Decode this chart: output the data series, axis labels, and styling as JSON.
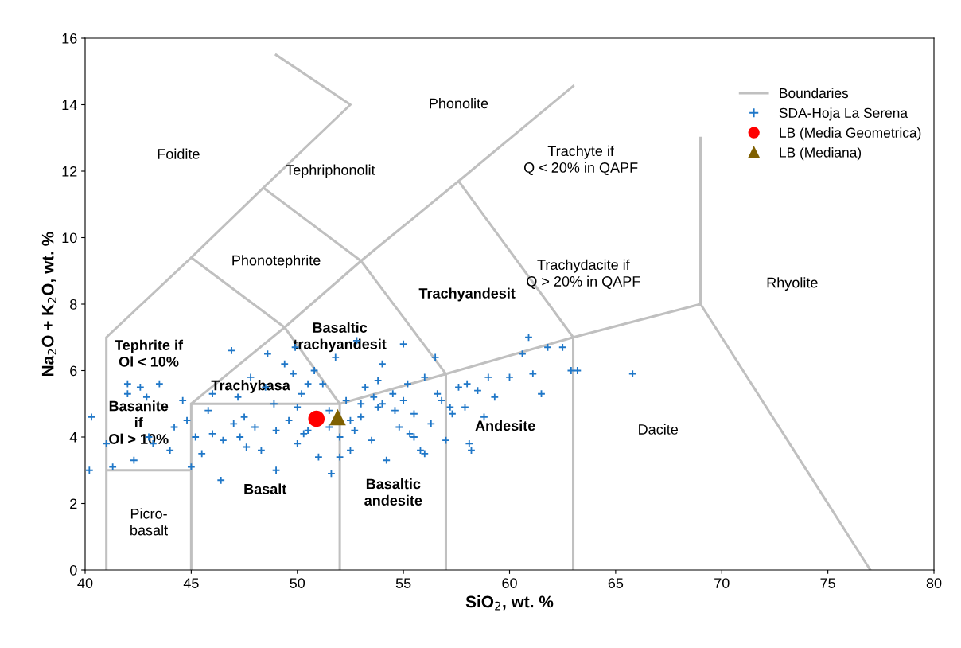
{
  "chart_data": {
    "type": "scatter",
    "xlabel": "SiO$_{2}$, wt. %",
    "ylabel": "Na$_{2}$O + K$_{2}$O, wt. %",
    "xlim": [
      40,
      80
    ],
    "xticks": [
      40,
      45,
      50,
      55,
      60,
      65,
      70,
      75,
      80
    ],
    "ylim": [
      0,
      16
    ],
    "yticks": [
      0,
      2,
      4,
      6,
      8,
      10,
      12,
      14,
      16
    ],
    "grid": false,
    "legend": "top right",
    "series": [
      {
        "name": "Boundaries",
        "type": "line",
        "color": "#c0c0c0",
        "marker": "none",
        "line_style": "solid",
        "x": [
          41,
          41,
          45,
          null,
          41,
          41,
          45,
          48.4,
          52.5,
          49,
          null,
          45,
          45,
          49.4,
          53,
          57.6,
          63,
          null,
          45,
          52,
          57,
          63,
          69,
          77,
          null,
          52,
          52,
          null,
          57,
          57,
          null,
          63,
          63,
          null,
          69,
          69,
          null,
          45,
          49.4,
          null,
          48.4,
          53,
          null,
          53,
          57,
          null,
          57.6,
          63,
          null,
          49.4,
          52
        ],
        "values": [
          0,
          3,
          3,
          null,
          3,
          7,
          9.4,
          11.5,
          14,
          15.5,
          null,
          0,
          5,
          7.3,
          9.3,
          11.7,
          14.56,
          null,
          5,
          5,
          5.9,
          7,
          8,
          0,
          null,
          0,
          5,
          null,
          0,
          5.9,
          null,
          0,
          7,
          null,
          8,
          13,
          null,
          9.4,
          7.3,
          null,
          11.5,
          9.3,
          null,
          9.3,
          5.9,
          null,
          11.7,
          7,
          null,
          7.3,
          5
        ]
      },
      {
        "name": "SDA-Hoja La Serena",
        "color": "#1f77c8",
        "marker": "cross",
        "x": [
          40.3,
          40.2,
          41.3,
          41.0,
          42.0,
          42.0,
          42.3,
          42.6,
          42.9,
          43.0,
          43.5,
          44.0,
          44.6,
          44.8,
          45.2,
          45.0,
          45.5,
          46.0,
          46.4,
          46.9,
          47.2,
          47.3,
          47.6,
          47.8,
          48.0,
          48.3,
          48.6,
          48.9,
          49.0,
          49.4,
          49.6,
          49.9,
          50.0,
          50.2,
          50.5,
          50.8,
          51.0,
          51.2,
          51.5,
          51.6,
          51.8,
          52.0,
          52.3,
          52.5,
          52.8,
          53.0,
          53.2,
          53.5,
          53.8,
          54.0,
          54.2,
          54.5,
          54.8,
          55.0,
          55.2,
          55.5,
          55.8,
          56.0,
          56.3,
          56.5,
          56.8,
          57.0,
          57.3,
          57.6,
          57.9,
          58.1,
          58.2,
          58.5,
          58.8,
          59.0,
          59.3,
          60.0,
          60.6,
          60.9,
          61.1,
          61.5,
          61.8,
          62.5,
          62.9,
          63.2,
          65.8,
          54.0,
          53.0,
          52.5,
          51.5,
          50.0,
          49.0,
          47.0,
          46.0,
          45.8,
          48.5,
          50.5,
          53.8,
          55.0,
          55.5,
          56.0,
          52.0,
          46.5,
          47.5,
          44.2,
          43.2,
          49.8,
          50.3,
          52.7,
          53.6,
          54.6,
          55.3,
          56.6,
          57.2,
          58.0
        ],
        "values": [
          4.6,
          3.0,
          3.1,
          3.8,
          5.6,
          5.3,
          3.3,
          5.5,
          5.2,
          4.0,
          5.6,
          3.6,
          5.1,
          4.5,
          4.0,
          3.1,
          3.5,
          5.3,
          2.7,
          6.6,
          5.2,
          4.0,
          3.7,
          5.8,
          4.3,
          3.6,
          6.5,
          5.0,
          3.0,
          6.2,
          4.5,
          6.7,
          3.8,
          5.3,
          4.2,
          6.0,
          3.4,
          5.6,
          4.8,
          2.9,
          6.4,
          4.0,
          5.1,
          3.6,
          6.9,
          4.6,
          5.5,
          3.9,
          4.9,
          6.2,
          3.3,
          5.3,
          4.3,
          6.8,
          5.6,
          4.7,
          3.6,
          5.8,
          4.4,
          6.4,
          5.1,
          3.9,
          4.7,
          5.5,
          4.9,
          3.8,
          3.6,
          5.4,
          4.6,
          5.8,
          5.2,
          5.8,
          6.5,
          7.0,
          5.9,
          5.3,
          6.7,
          6.7,
          6.0,
          6.0,
          5.9,
          5.0,
          5.0,
          4.5,
          4.3,
          4.9,
          4.2,
          4.4,
          4.1,
          4.8,
          5.5,
          5.6,
          5.7,
          5.1,
          4.0,
          3.5,
          3.4,
          3.9,
          4.6,
          4.3,
          3.8,
          5.9,
          4.1,
          4.2,
          5.2,
          4.8,
          4.1,
          5.3,
          4.9,
          5.6
        ]
      },
      {
        "name": "LB (Media Geometrica)",
        "color": "#ff0000",
        "marker": "circle",
        "x": [
          50.9
        ],
        "values": [
          4.55
        ]
      },
      {
        "name": "LB (Mediana)",
        "color": "#7f6000",
        "marker": "triangle",
        "x": [
          51.9
        ],
        "values": [
          4.6
        ]
      }
    ],
    "annotations": [
      "Foidite",
      "Phonolite",
      "Tephriphonolit",
      "Trachyte if\nQ < 20% in QAPF",
      "Phonotephrite",
      "Trachydacite if\nQ > 20% in QAPF",
      "Rhyolite",
      "Trachyandesit",
      "Basaltic\ntrachyandesit",
      "Tephrite if\nOl < 10%",
      "Trachybasa",
      "Basanite\nif\nOl > 10%",
      "Andesite",
      "Dacite",
      "Basalt",
      "Basaltic\nandesite",
      "Picro-\nbasalt"
    ]
  }
}
